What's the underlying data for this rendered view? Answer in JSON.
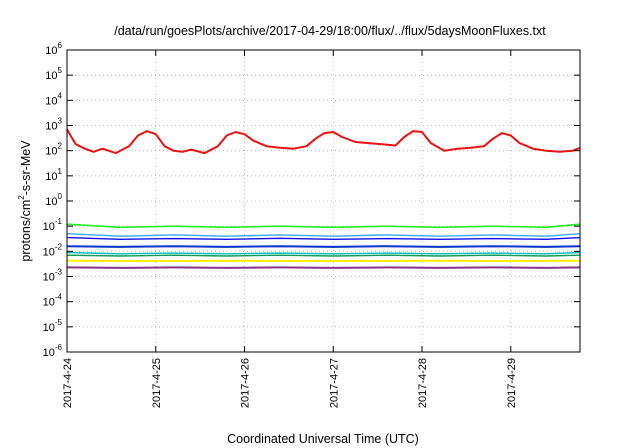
{
  "chart_data": {
    "type": "line",
    "title": "/data/run/goesPlots/archive/2017-04-29/18:00/flux/../flux/5daysMoonFluxes.txt",
    "xlabel": "Coordinated Universal Time (UTC)",
    "ylabel": {
      "pre": "protons/cm",
      "sup": "2",
      "post": "-s-sr-MeV"
    },
    "y_scale": "log",
    "ylim": [
      1e-06,
      1000000.0
    ],
    "y_ticks": [
      {
        "value": 1000000.0,
        "base": "10",
        "exp": "6"
      },
      {
        "value": 100000.0,
        "base": "10",
        "exp": "5"
      },
      {
        "value": 10000.0,
        "base": "10",
        "exp": "4"
      },
      {
        "value": 1000.0,
        "base": "10",
        "exp": "3"
      },
      {
        "value": 100.0,
        "base": "10",
        "exp": "2"
      },
      {
        "value": 10.0,
        "base": "10",
        "exp": "1"
      },
      {
        "value": 1.0,
        "base": "10",
        "exp": "0"
      },
      {
        "value": 0.1,
        "base": "10",
        "exp": "-1"
      },
      {
        "value": 0.01,
        "base": "10",
        "exp": "-2"
      },
      {
        "value": 0.001,
        "base": "10",
        "exp": "-3"
      },
      {
        "value": 0.0001,
        "base": "10",
        "exp": "-4"
      },
      {
        "value": 1e-05,
        "base": "10",
        "exp": "-5"
      },
      {
        "value": 1e-06,
        "base": "10",
        "exp": "-6"
      }
    ],
    "xlim": [
      0,
      5.78
    ],
    "x_ticks": [
      {
        "value": 0,
        "label": "2017-4-24"
      },
      {
        "value": 1,
        "label": "2017-4-25"
      },
      {
        "value": 2,
        "label": "2017-4-26"
      },
      {
        "value": 3,
        "label": "2017-4-27"
      },
      {
        "value": 4,
        "label": "2017-4-28"
      },
      {
        "value": 5,
        "label": "2017-4-29"
      }
    ],
    "grid": true,
    "series": [
      {
        "color": "#ee1111",
        "width": 2,
        "x": [
          0,
          0.05,
          0.1,
          0.2,
          0.3,
          0.4,
          0.55,
          0.7,
          0.8,
          0.9,
          1.0,
          1.1,
          1.2,
          1.3,
          1.4,
          1.55,
          1.7,
          1.8,
          1.9,
          2.0,
          2.1,
          2.25,
          2.4,
          2.55,
          2.7,
          2.8,
          2.9,
          3.0,
          3.1,
          3.25,
          3.4,
          3.55,
          3.7,
          3.8,
          3.9,
          4.0,
          4.1,
          4.25,
          4.4,
          4.55,
          4.7,
          4.8,
          4.9,
          5.0,
          5.1,
          5.25,
          5.4,
          5.55,
          5.7,
          5.78
        ],
        "y": [
          700,
          350,
          180,
          120,
          90,
          120,
          80,
          150,
          400,
          600,
          450,
          150,
          100,
          90,
          110,
          80,
          150,
          400,
          550,
          450,
          250,
          150,
          130,
          120,
          150,
          300,
          500,
          550,
          350,
          220,
          200,
          180,
          160,
          350,
          600,
          550,
          200,
          100,
          120,
          130,
          150,
          300,
          500,
          400,
          200,
          120,
          100,
          90,
          100,
          130
        ]
      },
      {
        "color": "#22ee22",
        "width": 1.6,
        "x": [
          0,
          0.6,
          1.2,
          1.8,
          2.4,
          3.0,
          3.6,
          4.2,
          4.8,
          5.4,
          5.78
        ],
        "y": [
          0.12,
          0.09,
          0.1,
          0.09,
          0.1,
          0.09,
          0.1,
          0.09,
          0.1,
          0.09,
          0.12
        ]
      },
      {
        "color": "#33aaff",
        "width": 1.4,
        "x": [
          0,
          0.6,
          1.2,
          1.8,
          2.4,
          3.0,
          3.6,
          4.2,
          4.8,
          5.4,
          5.78
        ],
        "y": [
          0.05,
          0.04,
          0.045,
          0.04,
          0.045,
          0.04,
          0.045,
          0.04,
          0.045,
          0.04,
          0.05
        ]
      },
      {
        "color": "#1111ee",
        "width": 1.4,
        "x": [
          0,
          0.6,
          1.2,
          1.8,
          2.4,
          3.0,
          3.6,
          4.2,
          4.8,
          5.4,
          5.78
        ],
        "y": [
          0.035,
          0.03,
          0.032,
          0.03,
          0.033,
          0.03,
          0.032,
          0.03,
          0.032,
          0.03,
          0.035
        ]
      },
      {
        "color": "#0033cc",
        "width": 2,
        "x": [
          0,
          0.6,
          1.2,
          1.8,
          2.4,
          3.0,
          3.6,
          4.2,
          4.8,
          5.4,
          5.78
        ],
        "y": [
          0.016,
          0.015,
          0.016,
          0.015,
          0.016,
          0.015,
          0.016,
          0.015,
          0.016,
          0.015,
          0.016
        ]
      },
      {
        "color": "#00bbbb",
        "width": 1.4,
        "x": [
          0,
          0.6,
          1.2,
          1.8,
          2.4,
          3.0,
          3.6,
          4.2,
          4.8,
          5.4,
          5.78
        ],
        "y": [
          0.009,
          0.008,
          0.0085,
          0.008,
          0.0085,
          0.008,
          0.0085,
          0.008,
          0.0085,
          0.008,
          0.009
        ]
      },
      {
        "color": "#119955",
        "width": 1.4,
        "x": [
          0,
          0.6,
          1.2,
          1.8,
          2.4,
          3.0,
          3.6,
          4.2,
          4.8,
          5.4,
          5.78
        ],
        "y": [
          0.007,
          0.0065,
          0.007,
          0.0065,
          0.007,
          0.0065,
          0.007,
          0.0065,
          0.007,
          0.0065,
          0.007
        ]
      },
      {
        "color": "#ffee00",
        "width": 2,
        "x": [
          0,
          1,
          2,
          3,
          4,
          5,
          5.78
        ],
        "y": [
          0.0042,
          0.0041,
          0.0042,
          0.0041,
          0.0042,
          0.0041,
          0.0042
        ]
      },
      {
        "color": "#883388",
        "width": 2,
        "x": [
          0,
          0.6,
          1.2,
          1.8,
          2.4,
          3.0,
          3.6,
          4.2,
          4.8,
          5.4,
          5.78
        ],
        "y": [
          0.0023,
          0.0022,
          0.0023,
          0.0022,
          0.0023,
          0.0022,
          0.0023,
          0.0022,
          0.0023,
          0.0022,
          0.0023
        ]
      }
    ]
  }
}
